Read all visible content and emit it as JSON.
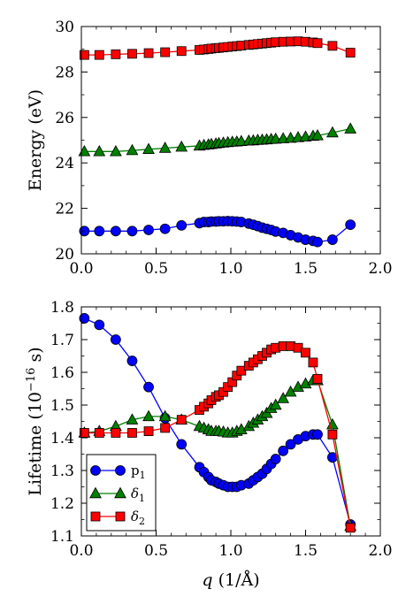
{
  "chart_data": [
    {
      "type": "line",
      "xlabel": "",
      "ylabel": "Energy (eV)",
      "xlim": [
        0.0,
        2.0
      ],
      "ylim": [
        20,
        30
      ],
      "xticks": [
        "0.0",
        "0.5",
        "1.0",
        "1.5",
        "2.0"
      ],
      "yticks": [
        "20",
        "22",
        "24",
        "26",
        "28",
        "30"
      ],
      "grid": false,
      "legend": null,
      "series": [
        {
          "key": "p1",
          "marker": "circle",
          "color": "#0000ff",
          "points": [
            [
              0.02,
              21.0
            ],
            [
              0.12,
              21.0
            ],
            [
              0.23,
              21.0
            ],
            [
              0.34,
              21.0
            ],
            [
              0.45,
              21.05
            ],
            [
              0.56,
              21.1
            ],
            [
              0.67,
              21.25
            ],
            [
              0.79,
              21.35
            ],
            [
              0.82,
              21.4
            ],
            [
              0.85,
              21.4
            ],
            [
              0.87,
              21.42
            ],
            [
              0.9,
              21.42
            ],
            [
              0.92,
              21.43
            ],
            [
              0.95,
              21.43
            ],
            [
              0.98,
              21.44
            ],
            [
              1.01,
              21.43
            ],
            [
              1.04,
              21.42
            ],
            [
              1.07,
              21.4
            ],
            [
              1.12,
              21.33
            ],
            [
              1.15,
              21.28
            ],
            [
              1.18,
              21.22
            ],
            [
              1.21,
              21.15
            ],
            [
              1.24,
              21.1
            ],
            [
              1.27,
              21.05
            ],
            [
              1.3,
              20.98
            ],
            [
              1.35,
              20.92
            ],
            [
              1.4,
              20.82
            ],
            [
              1.45,
              20.72
            ],
            [
              1.5,
              20.62
            ],
            [
              1.55,
              20.57
            ],
            [
              1.58,
              20.52
            ],
            [
              1.68,
              20.62
            ],
            [
              1.8,
              21.28
            ]
          ]
        },
        {
          "key": "d1",
          "marker": "triangle",
          "color": "#008000",
          "points": [
            [
              0.02,
              24.5
            ],
            [
              0.12,
              24.5
            ],
            [
              0.23,
              24.5
            ],
            [
              0.34,
              24.55
            ],
            [
              0.45,
              24.6
            ],
            [
              0.56,
              24.65
            ],
            [
              0.67,
              24.7
            ],
            [
              0.79,
              24.75
            ],
            [
              0.82,
              24.78
            ],
            [
              0.85,
              24.8
            ],
            [
              0.87,
              24.82
            ],
            [
              0.9,
              24.84
            ],
            [
              0.92,
              24.86
            ],
            [
              0.95,
              24.88
            ],
            [
              0.98,
              24.9
            ],
            [
              1.01,
              24.92
            ],
            [
              1.04,
              24.93
            ],
            [
              1.07,
              24.95
            ],
            [
              1.12,
              24.97
            ],
            [
              1.15,
              24.98
            ],
            [
              1.18,
              25.0
            ],
            [
              1.21,
              25.01
            ],
            [
              1.24,
              25.02
            ],
            [
              1.27,
              25.04
            ],
            [
              1.3,
              25.05
            ],
            [
              1.35,
              25.07
            ],
            [
              1.4,
              25.09
            ],
            [
              1.45,
              25.12
            ],
            [
              1.5,
              25.15
            ],
            [
              1.55,
              25.18
            ],
            [
              1.58,
              25.2
            ],
            [
              1.68,
              25.33
            ],
            [
              1.8,
              25.5
            ]
          ]
        },
        {
          "key": "d2",
          "marker": "square",
          "color": "#ff0000",
          "points": [
            [
              0.02,
              28.75
            ],
            [
              0.12,
              28.75
            ],
            [
              0.23,
              28.78
            ],
            [
              0.34,
              28.8
            ],
            [
              0.45,
              28.83
            ],
            [
              0.56,
              28.87
            ],
            [
              0.67,
              28.92
            ],
            [
              0.79,
              28.97
            ],
            [
              0.82,
              28.99
            ],
            [
              0.85,
              29.01
            ],
            [
              0.87,
              29.03
            ],
            [
              0.9,
              29.05
            ],
            [
              0.92,
              29.06
            ],
            [
              0.95,
              29.08
            ],
            [
              0.98,
              29.1
            ],
            [
              1.01,
              29.12
            ],
            [
              1.04,
              29.14
            ],
            [
              1.07,
              29.16
            ],
            [
              1.12,
              29.19
            ],
            [
              1.15,
              29.21
            ],
            [
              1.18,
              29.23
            ],
            [
              1.21,
              29.25
            ],
            [
              1.24,
              29.27
            ],
            [
              1.27,
              29.29
            ],
            [
              1.3,
              29.31
            ],
            [
              1.35,
              29.33
            ],
            [
              1.4,
              29.34
            ],
            [
              1.45,
              29.35
            ],
            [
              1.5,
              29.33
            ],
            [
              1.55,
              29.3
            ],
            [
              1.58,
              29.27
            ],
            [
              1.68,
              29.15
            ],
            [
              1.8,
              28.85
            ]
          ]
        }
      ]
    },
    {
      "type": "line",
      "xlabel": "q (1/Å)",
      "xlabel_parts": {
        "italic": "q",
        "rest": " (1/Å)"
      },
      "ylabel": "Lifetime (10⁻¹⁶ s)",
      "ylabel_parts": {
        "main": "Lifetime (10",
        "sup": "−16",
        "tail": " s)"
      },
      "xlim": [
        0.0,
        2.0
      ],
      "ylim": [
        1.1,
        1.8
      ],
      "xticks": [
        "0.0",
        "0.5",
        "1.0",
        "1.5",
        "2.0"
      ],
      "yticks": [
        "1.1",
        "1.2",
        "1.3",
        "1.4",
        "1.5",
        "1.6",
        "1.7",
        "1.8"
      ],
      "grid": false,
      "legend": "lower-left",
      "series": [
        {
          "key": "p1",
          "name": "p",
          "sub": "1",
          "marker": "circle",
          "color": "#0000ff",
          "points": [
            [
              0.02,
              1.765
            ],
            [
              0.12,
              1.745
            ],
            [
              0.23,
              1.7
            ],
            [
              0.34,
              1.635
            ],
            [
              0.45,
              1.555
            ],
            [
              0.56,
              1.46
            ],
            [
              0.67,
              1.38
            ],
            [
              0.79,
              1.31
            ],
            [
              0.82,
              1.295
            ],
            [
              0.85,
              1.28
            ],
            [
              0.87,
              1.27
            ],
            [
              0.9,
              1.265
            ],
            [
              0.92,
              1.26
            ],
            [
              0.95,
              1.255
            ],
            [
              0.98,
              1.25
            ],
            [
              1.01,
              1.25
            ],
            [
              1.04,
              1.25
            ],
            [
              1.07,
              1.255
            ],
            [
              1.12,
              1.26
            ],
            [
              1.15,
              1.27
            ],
            [
              1.18,
              1.28
            ],
            [
              1.21,
              1.29
            ],
            [
              1.24,
              1.305
            ],
            [
              1.27,
              1.32
            ],
            [
              1.3,
              1.335
            ],
            [
              1.35,
              1.36
            ],
            [
              1.4,
              1.38
            ],
            [
              1.45,
              1.395
            ],
            [
              1.5,
              1.405
            ],
            [
              1.55,
              1.41
            ],
            [
              1.58,
              1.41
            ],
            [
              1.68,
              1.34
            ],
            [
              1.8,
              1.135
            ]
          ]
        },
        {
          "key": "d1",
          "name": "δ",
          "sub": "1",
          "marker": "triangle",
          "color": "#008000",
          "points": [
            [
              0.02,
              1.415
            ],
            [
              0.12,
              1.42
            ],
            [
              0.23,
              1.435
            ],
            [
              0.34,
              1.455
            ],
            [
              0.45,
              1.465
            ],
            [
              0.56,
              1.465
            ],
            [
              0.67,
              1.455
            ],
            [
              0.79,
              1.435
            ],
            [
              0.82,
              1.43
            ],
            [
              0.85,
              1.425
            ],
            [
              0.87,
              1.42
            ],
            [
              0.9,
              1.42
            ],
            [
              0.92,
              1.42
            ],
            [
              0.95,
              1.418
            ],
            [
              0.98,
              1.415
            ],
            [
              1.01,
              1.415
            ],
            [
              1.04,
              1.42
            ],
            [
              1.07,
              1.425
            ],
            [
              1.12,
              1.435
            ],
            [
              1.15,
              1.445
            ],
            [
              1.18,
              1.455
            ],
            [
              1.21,
              1.465
            ],
            [
              1.24,
              1.475
            ],
            [
              1.27,
              1.49
            ],
            [
              1.3,
              1.5
            ],
            [
              1.35,
              1.52
            ],
            [
              1.4,
              1.54
            ],
            [
              1.45,
              1.555
            ],
            [
              1.5,
              1.565
            ],
            [
              1.55,
              1.575
            ],
            [
              1.58,
              1.575
            ],
            [
              1.68,
              1.44
            ],
            [
              1.8,
              1.13
            ]
          ]
        },
        {
          "key": "d2",
          "name": "δ",
          "sub": "2",
          "marker": "square",
          "color": "#ff0000",
          "points": [
            [
              0.02,
              1.415
            ],
            [
              0.12,
              1.415
            ],
            [
              0.23,
              1.415
            ],
            [
              0.34,
              1.415
            ],
            [
              0.45,
              1.42
            ],
            [
              0.56,
              1.43
            ],
            [
              0.67,
              1.455
            ],
            [
              0.79,
              1.485
            ],
            [
              0.82,
              1.495
            ],
            [
              0.85,
              1.505
            ],
            [
              0.87,
              1.515
            ],
            [
              0.9,
              1.525
            ],
            [
              0.92,
              1.53
            ],
            [
              0.95,
              1.54
            ],
            [
              0.98,
              1.555
            ],
            [
              1.01,
              1.57
            ],
            [
              1.04,
              1.59
            ],
            [
              1.07,
              1.605
            ],
            [
              1.12,
              1.62
            ],
            [
              1.15,
              1.63
            ],
            [
              1.18,
              1.64
            ],
            [
              1.21,
              1.65
            ],
            [
              1.24,
              1.66
            ],
            [
              1.27,
              1.67
            ],
            [
              1.3,
              1.675
            ],
            [
              1.35,
              1.68
            ],
            [
              1.4,
              1.68
            ],
            [
              1.45,
              1.675
            ],
            [
              1.5,
              1.66
            ],
            [
              1.55,
              1.63
            ],
            [
              1.58,
              1.58
            ],
            [
              1.68,
              1.41
            ],
            [
              1.8,
              1.125
            ]
          ]
        }
      ]
    }
  ]
}
